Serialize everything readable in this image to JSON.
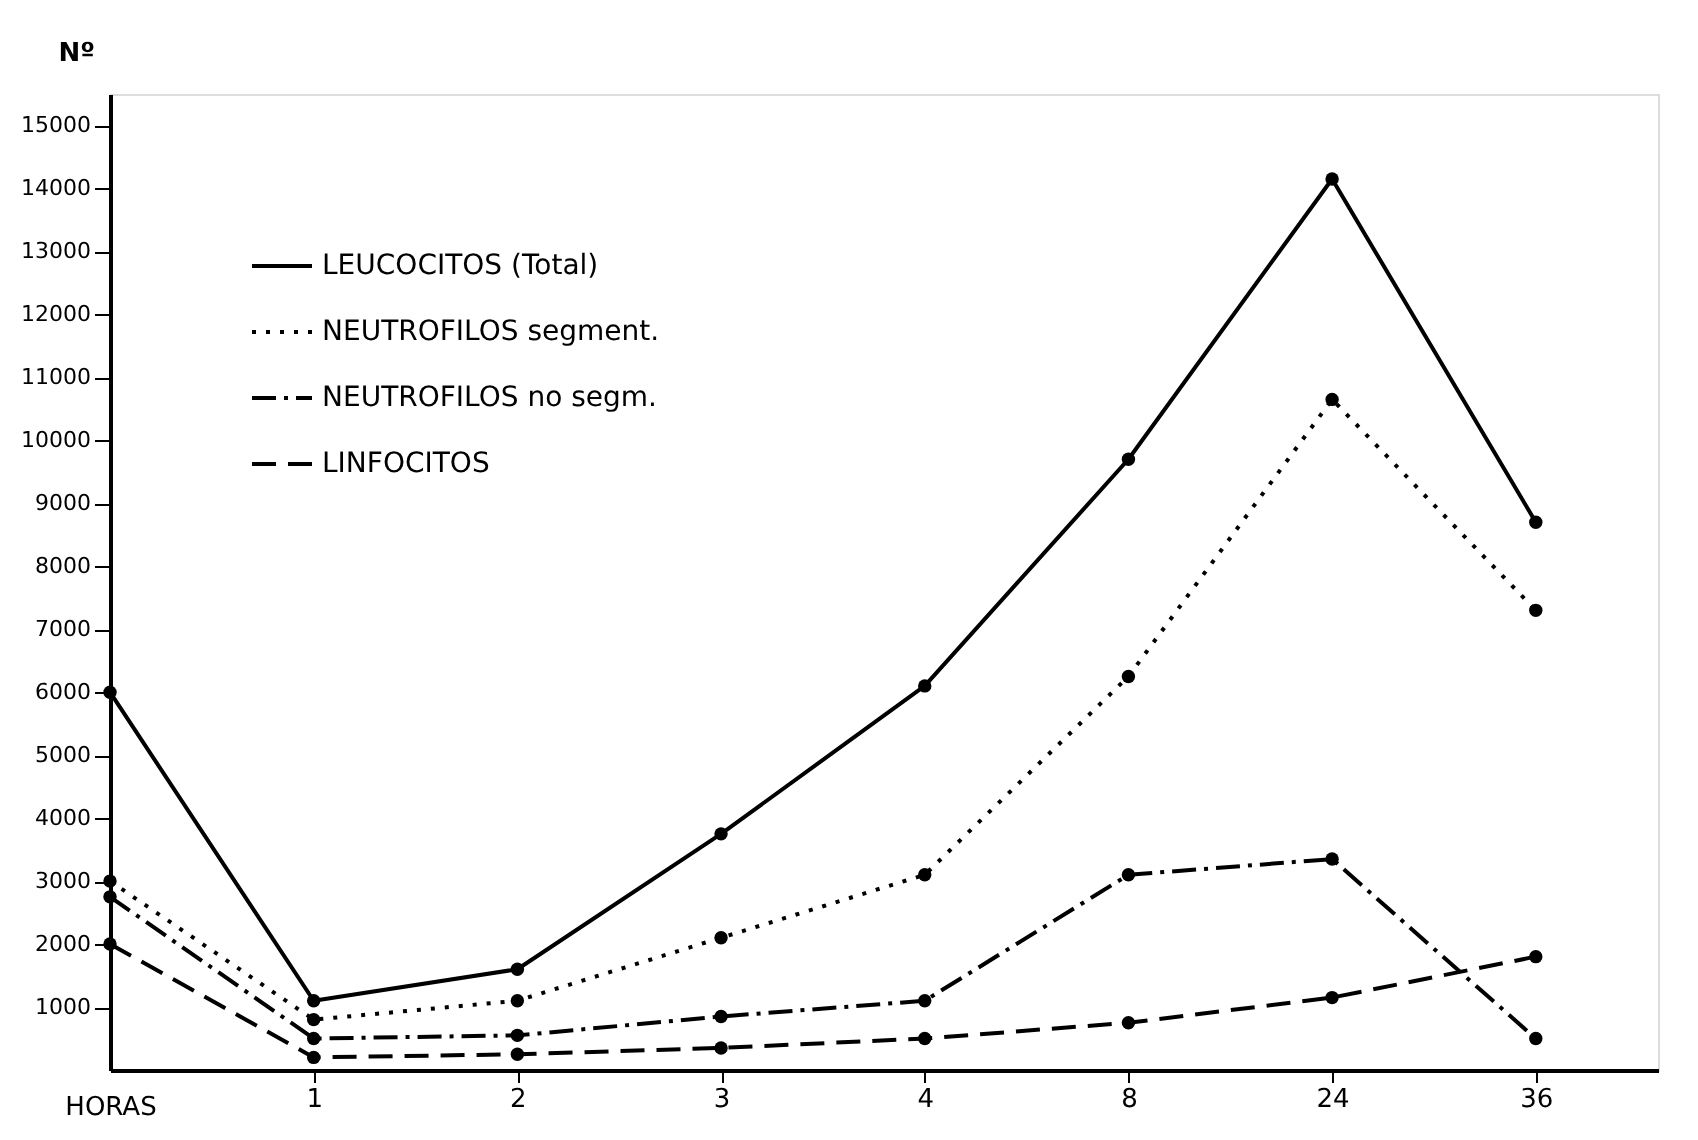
{
  "chart_data": {
    "type": "line",
    "categories": [
      null,
      "1",
      "2",
      "3",
      "4",
      "8",
      "24",
      "36"
    ],
    "xlabel": "HORAS",
    "ylabel": "Nº",
    "series": [
      {
        "name": "LEUCOCITOS (Total)",
        "color": "#000000",
        "line_style": "solid",
        "values": [
          6000,
          1100,
          1600,
          3750,
          6100,
          9700,
          14150,
          8700
        ]
      },
      {
        "name": "NEUTROFILOS segment.",
        "color": "#000000",
        "line_style": "dotted",
        "values": [
          3000,
          800,
          1100,
          2100,
          3100,
          6250,
          10650,
          7300
        ]
      },
      {
        "name": "NEUTROFILOS no segm.",
        "color": "#000000",
        "line_style": "dashdot",
        "values": [
          2750,
          500,
          550,
          850,
          1100,
          3100,
          3350,
          500
        ]
      },
      {
        "name": "LINFOCITOS",
        "color": "#000000",
        "line_style": "dashed",
        "values": [
          2000,
          200,
          250,
          350,
          500,
          750,
          1150,
          1800
        ]
      }
    ],
    "ylim": [
      0,
      15500
    ],
    "yticks": [
      1000,
      2000,
      3000,
      4000,
      5000,
      6000,
      7000,
      8000,
      9000,
      10000,
      11000,
      12000,
      13000,
      14000,
      15000
    ],
    "grid": false,
    "legend": "top left",
    "marker": "circle"
  }
}
